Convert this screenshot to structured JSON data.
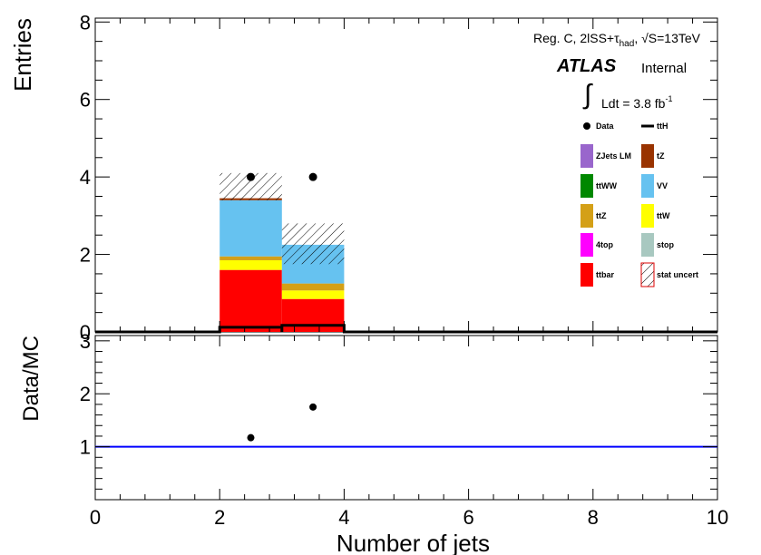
{
  "chart_data": {
    "type": "bar",
    "stacked": true,
    "x_bins": [
      [
        2,
        3
      ],
      [
        3,
        4
      ]
    ],
    "xlim": [
      0,
      10
    ],
    "xticks": [
      "0",
      "2",
      "4",
      "6",
      "8",
      "10"
    ],
    "xlabel": "Number of jets",
    "top_panel": {
      "ylabel": "Entries",
      "ylim": [
        0,
        8.1
      ],
      "yticks": [
        "0",
        "2",
        "4",
        "6",
        "8"
      ],
      "stack_series": [
        {
          "name": "ttbar",
          "color": "#ff0000",
          "values": [
            1.6,
            0.85
          ]
        },
        {
          "name": "4top",
          "color": "#ff00ff",
          "values": [
            0.0,
            0.0
          ]
        },
        {
          "name": "ttW",
          "color": "#ffff00",
          "values": [
            0.25,
            0.22
          ]
        },
        {
          "name": "ttZ",
          "color": "#d4a017",
          "values": [
            0.1,
            0.18
          ]
        },
        {
          "name": "VV",
          "color": "#66c2f0",
          "values": [
            1.45,
            1.0
          ]
        },
        {
          "name": "tZ",
          "color": "#993300",
          "values": [
            0.05,
            0.0
          ]
        }
      ],
      "ttH": {
        "name": "ttH",
        "color": "#000000",
        "values": [
          0.12,
          0.17
        ]
      },
      "stat_uncert": {
        "name": "stat uncert",
        "low": [
          3.4,
          1.75
        ],
        "high": [
          4.1,
          2.8
        ]
      },
      "data": {
        "name": "Data",
        "x": [
          2.5,
          3.5
        ],
        "y": [
          4,
          4
        ]
      }
    },
    "bottom_panel": {
      "ylabel": "Data/MC",
      "ylim": [
        0,
        3.1
      ],
      "yticks": [
        "1",
        "2",
        "3"
      ],
      "reference_line": 1,
      "reference_color": "#0000ff",
      "points": {
        "x": [
          2.5,
          3.5
        ],
        "y": [
          1.17,
          1.75
        ]
      }
    },
    "annotations": {
      "region": "Reg. C, 2lSS+τ",
      "region_sub": "had",
      "energy_prefix": ", √",
      "energy": "S=13TeV",
      "atlas": "ATLAS",
      "internal": "Internal",
      "lumi_integral": "∫",
      "lumi": "Ldt = 3.8 fb",
      "lumi_sup": "-1"
    },
    "legend": {
      "placement": "right",
      "entries": [
        {
          "label": "Data",
          "marker": "point",
          "color": "#000000"
        },
        {
          "label": "ttH",
          "marker": "line",
          "color": "#000000"
        },
        {
          "label": "ZJets LM",
          "marker": "box",
          "color": "#9966cc"
        },
        {
          "label": "tZ",
          "marker": "box",
          "color": "#993300"
        },
        {
          "label": "ttWW",
          "marker": "box",
          "color": "#008800"
        },
        {
          "label": "VV",
          "marker": "box",
          "color": "#66c2f0"
        },
        {
          "label": "ttZ",
          "marker": "box",
          "color": "#d4a017"
        },
        {
          "label": "ttW",
          "marker": "box",
          "color": "#ffff00"
        },
        {
          "label": "4top",
          "marker": "box",
          "color": "#ff00ff"
        },
        {
          "label": "stop",
          "marker": "box",
          "color": "#a8c8c0"
        },
        {
          "label": "ttbar",
          "marker": "box",
          "color": "#ff0000"
        },
        {
          "label": "stat uncert",
          "marker": "hatch",
          "color": "#dd0000"
        }
      ]
    }
  }
}
